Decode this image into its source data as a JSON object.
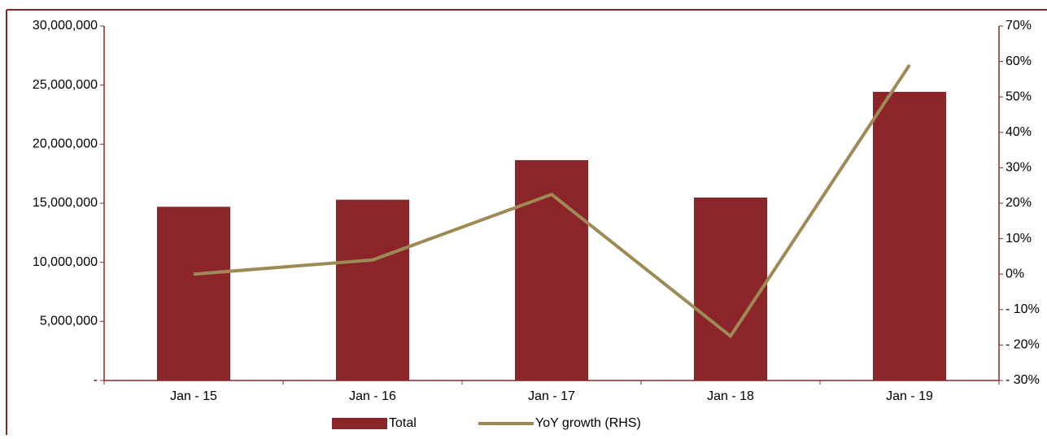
{
  "chart_data": {
    "type": "bar_line",
    "categories": [
      "Jan  - 15",
      "Jan  - 16",
      "Jan  - 17",
      "Jan  - 18",
      "Jan  - 19"
    ],
    "series": [
      {
        "name": "Total",
        "type": "bar",
        "color": "#8b2529",
        "values": [
          14700000,
          15300000,
          18650000,
          15480000,
          24430000
        ]
      },
      {
        "name": "YoY growth (RHS)",
        "type": "line",
        "axis": "y2",
        "color": "#9e8a55",
        "values": [
          0,
          4,
          22.5,
          -17.5,
          59
        ]
      }
    ],
    "ylim": [
      0,
      30000000
    ],
    "yticks": [
      {
        "value": 0,
        "label": "-"
      },
      {
        "value": 5000000,
        "label": "5,000,000"
      },
      {
        "value": 10000000,
        "label": "10,000,000"
      },
      {
        "value": 15000000,
        "label": "15,000,000"
      },
      {
        "value": 20000000,
        "label": "20,000,000"
      },
      {
        "value": 25000000,
        "label": "25,000,000"
      },
      {
        "value": 30000000,
        "label": "30,000,000"
      }
    ],
    "y2lim": [
      -30,
      70
    ],
    "y2ticks": [
      {
        "value": -30,
        "label": "- 30%"
      },
      {
        "value": -20,
        "label": "- 20%"
      },
      {
        "value": -10,
        "label": "- 10%"
      },
      {
        "value": 0,
        "label": "0%"
      },
      {
        "value": 10,
        "label": "10%"
      },
      {
        "value": 20,
        "label": "20%"
      },
      {
        "value": 30,
        "label": "30%"
      },
      {
        "value": 40,
        "label": "40%"
      },
      {
        "value": 50,
        "label": "50%"
      },
      {
        "value": 60,
        "label": "60%"
      },
      {
        "value": 70,
        "label": "70%"
      }
    ],
    "grid": false,
    "legend": "bottom"
  }
}
